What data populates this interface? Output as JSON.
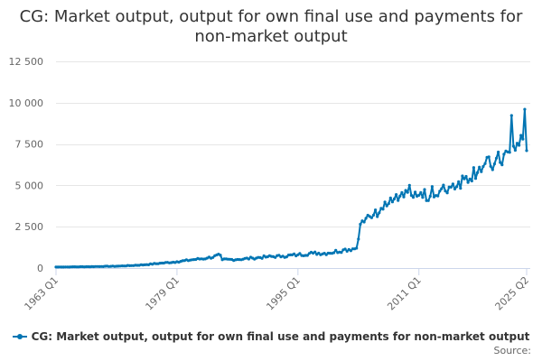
{
  "chart_title": "CG: Market output, output for own final use and payments for non-market output",
  "source_label": "Source:",
  "colors": {
    "series": "#0075b3",
    "grid": "#e6e6e6",
    "axis": "#ccd6eb",
    "text": "#333333",
    "tick_text": "#666666"
  },
  "chart_data": {
    "type": "line",
    "title": "CG: Market output, output for own final use and payments for non-market output",
    "xlabel": "",
    "ylabel": "",
    "ylim": [
      0,
      12500
    ],
    "y_ticks": [
      "0",
      "2 500",
      "5 000",
      "7 500",
      "10 000",
      "12 500"
    ],
    "y_tick_values": [
      0,
      2500,
      5000,
      7500,
      10000,
      12500
    ],
    "x_tick_labels": [
      "1963 Q1",
      "1979 Q1",
      "1995 Q1",
      "2011 Q1",
      "2025 Q2"
    ],
    "x_range": [
      "1963 Q1",
      "2025 Q2"
    ],
    "grid": "horizontal",
    "legend": "bottom",
    "series": [
      {
        "name": "CG: Market output, output for own final use and payments for non-market output",
        "x_start": "1963 Q1",
        "frequency": "quarterly",
        "anchors": [
          [
            "1963 Q1",
            60
          ],
          [
            "1965 Q1",
            70
          ],
          [
            "1967 Q1",
            80
          ],
          [
            "1969 Q1",
            95
          ],
          [
            "1971 Q1",
            110
          ],
          [
            "1973 Q1",
            150
          ],
          [
            "1975 Q1",
            210
          ],
          [
            "1977 Q1",
            300
          ],
          [
            "1979 Q1",
            380
          ],
          [
            "1981 Q1",
            500
          ],
          [
            "1983 Q1",
            600
          ],
          [
            "1984 Q4",
            780
          ],
          [
            "1985 Q1",
            500
          ],
          [
            "1987 Q1",
            520
          ],
          [
            "1989 Q1",
            600
          ],
          [
            "1991 Q1",
            680
          ],
          [
            "1993 Q1",
            720
          ],
          [
            "1995 Q1",
            800
          ],
          [
            "1997 Q1",
            900
          ],
          [
            "1999 Q1",
            900
          ],
          [
            "2001 Q1",
            1100
          ],
          [
            "2002 Q4",
            1200
          ],
          [
            "2003 Q2",
            2650
          ],
          [
            "2005 Q1",
            3200
          ],
          [
            "2007 Q1",
            3900
          ],
          [
            "2009 Q1",
            4300
          ],
          [
            "2011 Q1",
            4400
          ],
          [
            "2013 Q1",
            4300
          ],
          [
            "2015 Q1",
            4900
          ],
          [
            "2017 Q1",
            5400
          ],
          [
            "2019 Q1",
            6100
          ],
          [
            "2021 Q1",
            6300
          ],
          [
            "2023 Q1",
            7000
          ],
          [
            "2024 Q4",
            7800
          ],
          [
            "2025 Q1",
            9600
          ],
          [
            "2025 Q2",
            7100
          ]
        ]
      }
    ]
  }
}
